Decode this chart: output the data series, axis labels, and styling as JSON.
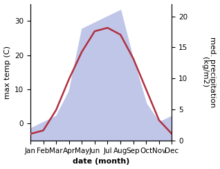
{
  "months": [
    "Jan",
    "Feb",
    "Mar",
    "Apr",
    "May",
    "Jun",
    "Jul",
    "Aug",
    "Sep",
    "Oct",
    "Nov",
    "Dec"
  ],
  "temp": [
    -3,
    -2,
    4,
    13,
    21,
    27,
    28,
    26,
    19,
    10,
    1,
    -3
  ],
  "precip": [
    2,
    3,
    4,
    8,
    18,
    19,
    20,
    21,
    13,
    6,
    3,
    4
  ],
  "temp_color": "#b03040",
  "precip_fill_color": "#bfc6e8",
  "temp_ylim": [
    -5,
    35
  ],
  "precip_ylim": [
    0,
    22
  ],
  "ylabel_left": "max temp (C)",
  "ylabel_right": "med. precipitation\n(kg/m2)",
  "xlabel": "date (month)",
  "label_fontsize": 8,
  "tick_fontsize": 7.5
}
